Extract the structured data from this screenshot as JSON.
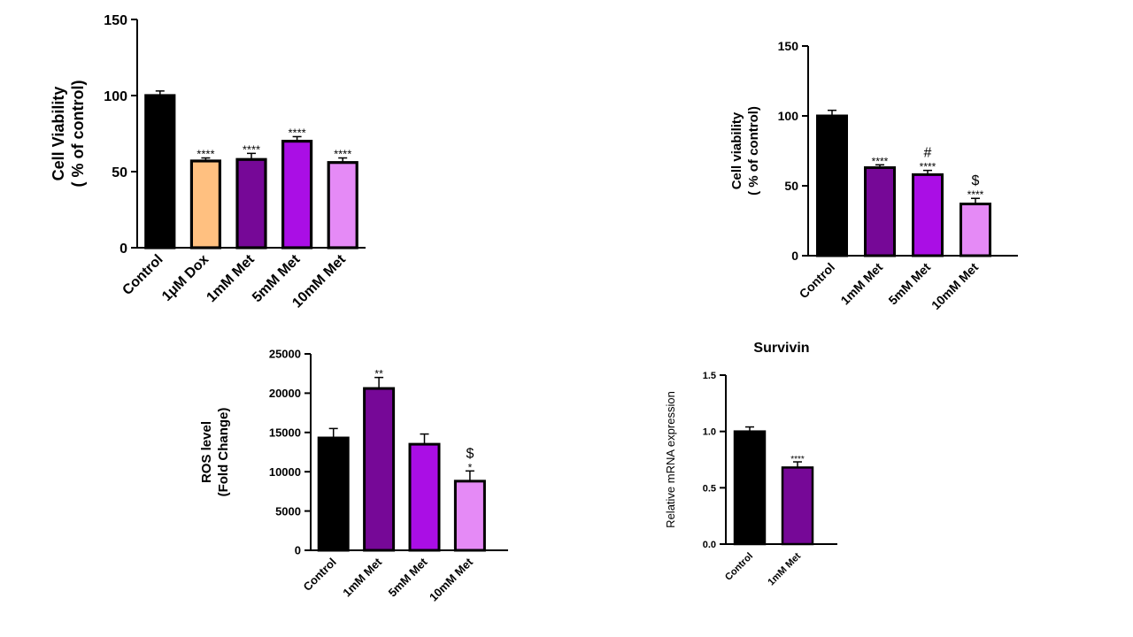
{
  "chart_data": [
    {
      "type": "bar",
      "title": "",
      "ylabel": [
        "Cell Viability",
        "( % of control)"
      ],
      "categories": [
        "Control",
        "1μM Dox",
        "1mM Met",
        "5mM Met",
        "10mM Met"
      ],
      "values": [
        100,
        57,
        58,
        70,
        56
      ],
      "errors": [
        3,
        2,
        4,
        3,
        3
      ],
      "colors": [
        "#000000",
        "#ffc080",
        "#760897",
        "#aa0ee5",
        "#e58af6"
      ],
      "annotations": [
        [
          ""
        ],
        [
          "****"
        ],
        [
          "****"
        ],
        [
          "****"
        ],
        [
          "****"
        ]
      ],
      "ylim": [
        0,
        150
      ],
      "yticks": [
        0,
        50,
        100,
        150
      ],
      "ytick_labels": [
        "0",
        "50",
        "100",
        "150"
      ]
    },
    {
      "type": "bar",
      "title": "",
      "ylabel": [
        "Cell viability",
        "( % of control)"
      ],
      "categories": [
        "Control",
        "1mM Met",
        "5mM Met",
        "10mM Met"
      ],
      "values": [
        100,
        63,
        58,
        37
      ],
      "errors": [
        4,
        2,
        3,
        4
      ],
      "colors": [
        "#000000",
        "#760897",
        "#aa0ee5",
        "#e58af6"
      ],
      "annotations": [
        [
          ""
        ],
        [
          "****"
        ],
        [
          "****",
          "#"
        ],
        [
          "****",
          "$"
        ]
      ],
      "ylim": [
        0,
        150
      ],
      "yticks": [
        0,
        50,
        100,
        150
      ],
      "ytick_labels": [
        "0",
        "50",
        "100",
        "150"
      ]
    },
    {
      "type": "bar",
      "title": "",
      "ylabel": [
        "ROS level",
        "(Fold Change)"
      ],
      "categories": [
        "Control",
        "1mM Met",
        "5mM Met",
        "10mM Met"
      ],
      "values": [
        14300,
        20600,
        13500,
        8800
      ],
      "errors": [
        1200,
        1400,
        1300,
        1300
      ],
      "colors": [
        "#000000",
        "#760897",
        "#aa0ee5",
        "#e58af6"
      ],
      "annotations": [
        [
          ""
        ],
        [
          "**"
        ],
        [
          ""
        ],
        [
          "*",
          "$"
        ]
      ],
      "ylim": [
        0,
        25000
      ],
      "yticks": [
        0,
        5000,
        10000,
        15000,
        20000,
        25000
      ],
      "ytick_labels": [
        "0",
        "5000",
        "10000",
        "15000",
        "20000",
        "25000"
      ]
    },
    {
      "type": "bar",
      "title": "Survivin",
      "ylabel": [
        "Relative mRNA expression"
      ],
      "categories": [
        "Control",
        "1mM Met"
      ],
      "values": [
        1.0,
        0.68
      ],
      "errors": [
        0.04,
        0.05
      ],
      "colors": [
        "#000000",
        "#760897"
      ],
      "annotations": [
        [
          ""
        ],
        [
          "****"
        ]
      ],
      "ylim": [
        0,
        1.5
      ],
      "yticks": [
        0,
        0.5,
        1.0,
        1.5
      ],
      "ytick_labels": [
        "0.0",
        "0.5",
        "1.0",
        "1.5"
      ]
    }
  ]
}
